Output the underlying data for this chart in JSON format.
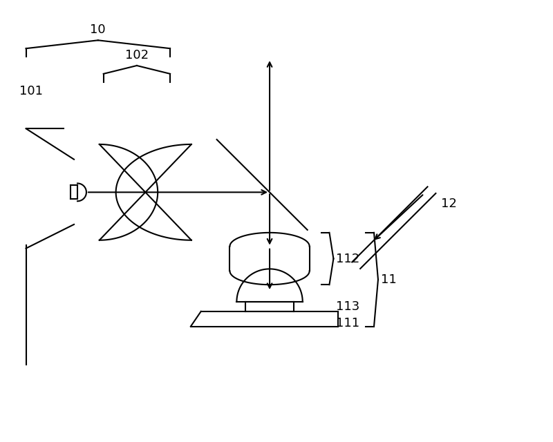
{
  "bg_color": "#ffffff",
  "line_color": "#000000",
  "lw": 1.5,
  "fig_width": 8.0,
  "fig_height": 6.4
}
